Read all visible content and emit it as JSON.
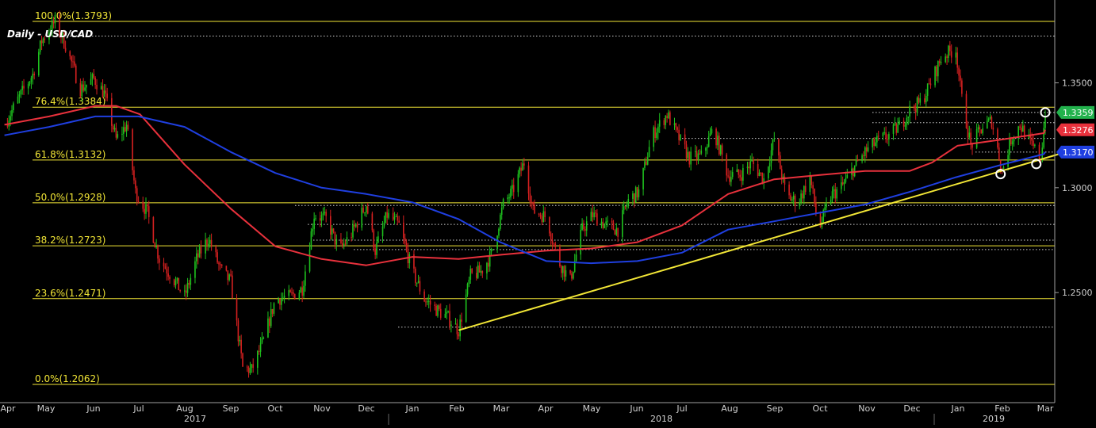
{
  "chart_data": {
    "type": "line",
    "title": "Daily - USD/CAD",
    "xlabel": "",
    "ylabel": "",
    "ylim": [
      1.2062,
      1.3793
    ],
    "grid": false,
    "x_months": [
      "Apr",
      "May",
      "Jun",
      "Jul",
      "Aug",
      "Sep",
      "Oct",
      "Nov",
      "Dec",
      "Jan",
      "Feb",
      "Mar",
      "Apr",
      "May",
      "Jun",
      "Jul",
      "Aug",
      "Sep",
      "Oct",
      "Nov",
      "Dec",
      "Jan",
      "Feb",
      "Mar"
    ],
    "x_years": [
      "2017",
      "2018",
      "2019"
    ],
    "y_ticks": [
      "1.3500",
      "1.3000",
      "1.2500"
    ],
    "fib_levels": [
      {
        "label": "100.0%(1.3793)",
        "value": 1.3793
      },
      {
        "label": "76.4%(1.3384)",
        "value": 1.3384
      },
      {
        "label": "61.8%(1.3132)",
        "value": 1.3132
      },
      {
        "label": "50.0%(1.2928)",
        "value": 1.2928
      },
      {
        "label": "38.2%(1.2723)",
        "value": 1.2723
      },
      {
        "label": "23.6%(1.2471)",
        "value": 1.2471
      },
      {
        "label": "0.0%(1.2062)",
        "value": 1.2062
      }
    ],
    "price_badges": [
      {
        "label": "1.3359",
        "value": 1.3359,
        "color": "#22b14c"
      },
      {
        "label": "1.3276",
        "value": 1.3276,
        "color": "#e8313c"
      },
      {
        "label": "1.3170",
        "value": 1.317,
        "color": "#1f3fe0"
      }
    ],
    "dotted_levels": [
      1.3723,
      1.3359,
      1.331,
      1.3235,
      1.317,
      1.2915,
      1.2825,
      1.275,
      1.2705,
      1.2335
    ],
    "series": [
      {
        "kind": "price",
        "color_up": "#1ec21e",
        "color_down": "#d42020",
        "points": [
          [
            "2017-04-01",
            1.33
          ],
          [
            "2017-04-10",
            1.342
          ],
          [
            "2017-04-20",
            1.354
          ],
          [
            "2017-04-26",
            1.37
          ],
          [
            "2017-05-05",
            1.3793
          ],
          [
            "2017-05-12",
            1.368
          ],
          [
            "2017-05-22",
            1.347
          ],
          [
            "2017-05-31",
            1.352
          ],
          [
            "2017-06-07",
            1.345
          ],
          [
            "2017-06-15",
            1.323
          ],
          [
            "2017-06-22",
            1.33
          ],
          [
            "2017-06-28",
            1.298
          ],
          [
            "2017-07-06",
            1.288
          ],
          [
            "2017-07-14",
            1.266
          ],
          [
            "2017-07-22",
            1.258
          ],
          [
            "2017-07-31",
            1.248
          ],
          [
            "2017-08-08",
            1.266
          ],
          [
            "2017-08-16",
            1.276
          ],
          [
            "2017-08-24",
            1.261
          ],
          [
            "2017-08-31",
            1.255
          ],
          [
            "2017-09-08",
            1.214
          ],
          [
            "2017-09-14",
            1.213
          ],
          [
            "2017-09-22",
            1.227
          ],
          [
            "2017-09-30",
            1.247
          ],
          [
            "2017-10-10",
            1.248
          ],
          [
            "2017-10-18",
            1.252
          ],
          [
            "2017-10-26",
            1.287
          ],
          [
            "2017-11-03",
            1.285
          ],
          [
            "2017-11-12",
            1.27
          ],
          [
            "2017-11-20",
            1.278
          ],
          [
            "2017-11-30",
            1.292
          ],
          [
            "2017-12-06",
            1.27
          ],
          [
            "2017-12-14",
            1.287
          ],
          [
            "2017-12-22",
            1.282
          ],
          [
            "2017-12-31",
            1.26
          ],
          [
            "2018-01-08",
            1.247
          ],
          [
            "2018-01-16",
            1.242
          ],
          [
            "2018-01-24",
            1.238
          ],
          [
            "2018-01-31",
            1.232
          ],
          [
            "2018-02-08",
            1.258
          ],
          [
            "2018-02-15",
            1.26
          ],
          [
            "2018-02-22",
            1.268
          ],
          [
            "2018-03-02",
            1.292
          ],
          [
            "2018-03-08",
            1.298
          ],
          [
            "2018-03-16",
            1.312
          ],
          [
            "2018-03-22",
            1.289
          ],
          [
            "2018-03-31",
            1.286
          ],
          [
            "2018-04-08",
            1.265
          ],
          [
            "2018-04-16",
            1.256
          ],
          [
            "2018-04-24",
            1.28
          ],
          [
            "2018-05-01",
            1.287
          ],
          [
            "2018-05-10",
            1.282
          ],
          [
            "2018-05-18",
            1.28
          ],
          [
            "2018-05-25",
            1.294
          ],
          [
            "2018-06-01",
            1.298
          ],
          [
            "2018-06-10",
            1.325
          ],
          [
            "2018-06-20",
            1.335
          ],
          [
            "2018-06-27",
            1.325
          ],
          [
            "2018-07-05",
            1.314
          ],
          [
            "2018-07-13",
            1.315
          ],
          [
            "2018-07-21",
            1.328
          ],
          [
            "2018-07-31",
            1.306
          ],
          [
            "2018-08-08",
            1.306
          ],
          [
            "2018-08-16",
            1.312
          ],
          [
            "2018-08-24",
            1.304
          ],
          [
            "2018-08-31",
            1.323
          ],
          [
            "2018-09-08",
            1.296
          ],
          [
            "2018-09-16",
            1.293
          ],
          [
            "2018-09-24",
            1.305
          ],
          [
            "2018-09-30",
            1.28
          ],
          [
            "2018-10-08",
            1.296
          ],
          [
            "2018-10-16",
            1.301
          ],
          [
            "2018-10-24",
            1.31
          ],
          [
            "2018-10-31",
            1.317
          ],
          [
            "2018-11-08",
            1.322
          ],
          [
            "2018-11-16",
            1.325
          ],
          [
            "2018-11-24",
            1.33
          ],
          [
            "2018-11-30",
            1.337
          ],
          [
            "2018-12-08",
            1.341
          ],
          [
            "2018-12-14",
            1.35
          ],
          [
            "2018-12-22",
            1.363
          ],
          [
            "2018-12-31",
            1.366
          ],
          [
            "2019-01-04",
            1.342
          ],
          [
            "2019-01-10",
            1.32
          ],
          [
            "2019-01-18",
            1.329
          ],
          [
            "2019-01-24",
            1.332
          ],
          [
            "2019-01-31",
            1.308
          ],
          [
            "2019-02-06",
            1.323
          ],
          [
            "2019-02-12",
            1.33
          ],
          [
            "2019-02-20",
            1.32
          ],
          [
            "2019-02-26",
            1.314
          ],
          [
            "2019-03-01",
            1.3359
          ]
        ]
      },
      {
        "name": "",
        "kind": "ma",
        "color": "#e8313c",
        "points": [
          [
            "2017-04-01",
            1.33
          ],
          [
            "2017-05-01",
            1.334
          ],
          [
            "2017-06-01",
            1.339
          ],
          [
            "2017-06-15",
            1.339
          ],
          [
            "2017-07-01",
            1.335
          ],
          [
            "2017-07-31",
            1.311
          ],
          [
            "2017-08-31",
            1.29
          ],
          [
            "2017-09-30",
            1.272
          ],
          [
            "2017-10-31",
            1.266
          ],
          [
            "2017-11-30",
            1.263
          ],
          [
            "2017-12-31",
            1.267
          ],
          [
            "2018-01-31",
            1.266
          ],
          [
            "2018-02-28",
            1.268
          ],
          [
            "2018-03-31",
            1.27
          ],
          [
            "2018-04-30",
            1.271
          ],
          [
            "2018-05-31",
            1.274
          ],
          [
            "2018-06-30",
            1.282
          ],
          [
            "2018-07-31",
            1.297
          ],
          [
            "2018-08-31",
            1.304
          ],
          [
            "2018-09-30",
            1.306
          ],
          [
            "2018-10-31",
            1.308
          ],
          [
            "2018-11-30",
            1.308
          ],
          [
            "2018-12-15",
            1.312
          ],
          [
            "2019-01-01",
            1.32
          ],
          [
            "2019-01-31",
            1.323
          ],
          [
            "2019-02-28",
            1.326
          ],
          [
            "2019-03-01",
            1.3276
          ]
        ]
      },
      {
        "name": "",
        "kind": "ma",
        "color": "#1f3fe0",
        "points": [
          [
            "2017-04-01",
            1.325
          ],
          [
            "2017-05-01",
            1.329
          ],
          [
            "2017-06-01",
            1.334
          ],
          [
            "2017-06-30",
            1.334
          ],
          [
            "2017-07-31",
            1.329
          ],
          [
            "2017-08-31",
            1.317
          ],
          [
            "2017-09-30",
            1.307
          ],
          [
            "2017-10-31",
            1.3
          ],
          [
            "2017-11-30",
            1.297
          ],
          [
            "2017-12-31",
            1.293
          ],
          [
            "2018-01-31",
            1.285
          ],
          [
            "2018-02-28",
            1.274
          ],
          [
            "2018-03-31",
            1.265
          ],
          [
            "2018-04-30",
            1.264
          ],
          [
            "2018-05-31",
            1.265
          ],
          [
            "2018-06-30",
            1.269
          ],
          [
            "2018-07-31",
            1.28
          ],
          [
            "2018-08-31",
            1.284
          ],
          [
            "2018-09-30",
            1.288
          ],
          [
            "2018-10-31",
            1.292
          ],
          [
            "2018-11-30",
            1.298
          ],
          [
            "2018-12-31",
            1.305
          ],
          [
            "2019-01-31",
            1.311
          ],
          [
            "2019-02-28",
            1.316
          ],
          [
            "2019-03-01",
            1.317
          ]
        ]
      },
      {
        "name": "",
        "kind": "trendline",
        "color": "#f2e636",
        "points": [
          [
            "2018-01-31",
            1.232
          ],
          [
            "2019-03-10",
            1.316
          ]
        ]
      }
    ],
    "markers": [
      [
        "2019-01-30",
        1.3065
      ],
      [
        "2019-02-23",
        1.3113
      ],
      [
        "2019-03-01",
        1.3359
      ]
    ],
    "colors": {
      "background": "#000000",
      "fib": "#f2e636",
      "axis_text": "#cfcfcf",
      "dotted": "#d0d0d0",
      "fib_text": "#f2e636"
    }
  }
}
